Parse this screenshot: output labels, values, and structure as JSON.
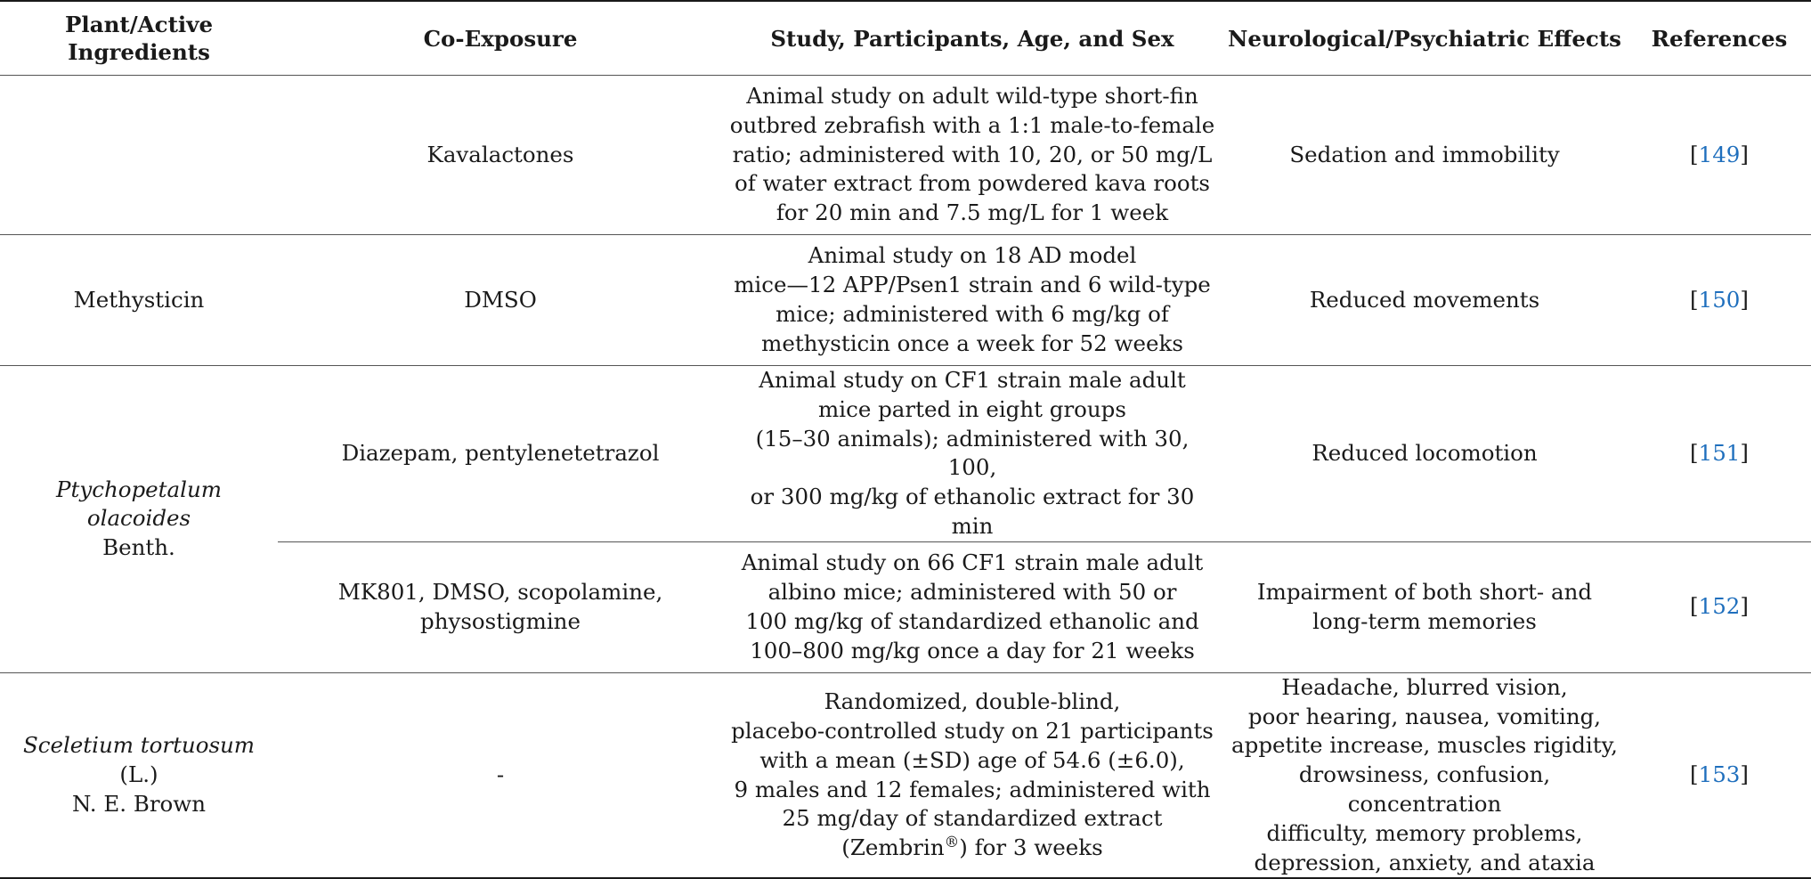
{
  "header": {
    "col1": "Plant/Active Ingredients",
    "col2": "Co-Exposure",
    "col3": "Study, Participants, Age, and Sex",
    "col4": "Neurological/Psychiatric Effects",
    "col5": "References"
  },
  "rows": [
    {
      "plant": "",
      "co_exposure": "Kavalactones",
      "study": [
        "Animal study on adult wild-type short-fin",
        "outbred zebrafish with a 1:1 male-to-female",
        "ratio; administered with 10, 20, or 50 mg/L",
        "of water extract from powdered kava roots",
        "for 20 min and 7.5 mg/L for 1 week"
      ],
      "effects": [
        "Sedation and immobility"
      ],
      "ref": "149"
    },
    {
      "plant": "Methysticin",
      "co_exposure": "DMSO",
      "study": [
        "Animal study on 18 AD model",
        "mice—12 APP/Psen1 strain and 6 wild-type",
        "mice; administered with 6 mg/kg of",
        "methysticin once a week for 52 weeks"
      ],
      "effects": [
        "Reduced movements"
      ],
      "ref": "150"
    },
    {
      "plant_italic": "Ptychopetalum olacoides",
      "plant_rest": "Benth.",
      "co_exposure": "Diazepam, pentylenetetrazol",
      "study": [
        "Animal study on CF1 strain male adult",
        "mice parted in eight groups",
        "(15–30 animals); administered with 30, 100,",
        "or 300 mg/kg of ethanolic extract for 30 min"
      ],
      "effects": [
        "Reduced locomotion"
      ],
      "ref": "151"
    },
    {
      "co_exposure": [
        "MK801, DMSO, scopolamine,",
        "physostigmine"
      ],
      "study": [
        "Animal study on 66 CF1 strain male adult",
        "albino mice; administered with 50 or",
        "100 mg/kg of standardized ethanolic and",
        "100–800 mg/kg once a day for 21 weeks"
      ],
      "effects": [
        "Impairment of both short- and",
        "long-term memories"
      ],
      "ref": "152"
    },
    {
      "plant_italic": "Sceletium tortuosum",
      "plant_mid": " (L.)",
      "plant_rest": "N. E. Brown",
      "co_exposure": "-",
      "study": [
        "Randomized, double-blind,",
        "placebo-controlled study on 21 participants",
        "with a mean (±SD) age of 54.6 (±6.0),",
        "9 males and 12 females; administered with",
        "25 mg/day of standardized extract"
      ],
      "study_last_pre": "(Zembrin",
      "study_last_sup": "®",
      "study_last_post": ") for 3 weeks",
      "effects": [
        "Headache, blurred vision,",
        "poor hearing, nausea, vomiting,",
        "appetite increase, muscles rigidity,",
        "drowsiness, confusion, concentration",
        "difficulty, memory problems,",
        "depression, anxiety, and ataxia"
      ],
      "ref": "153"
    }
  ],
  "bracket_open": "[",
  "bracket_close": "]"
}
